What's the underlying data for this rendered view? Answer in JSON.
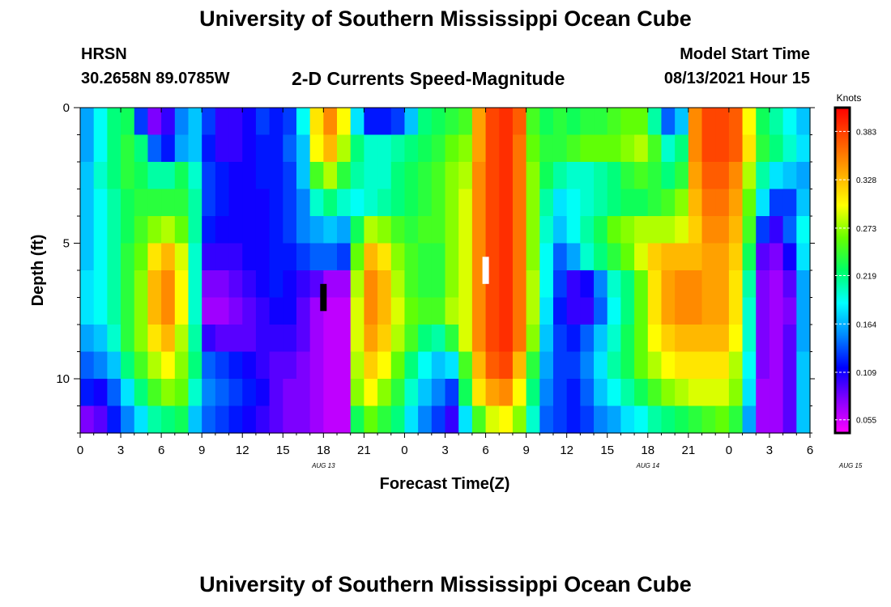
{
  "header": {
    "title": "University of Southern Mississippi Ocean Cube",
    "station": "HRSN",
    "coordinates": "30.2658N  89.0785W",
    "product": "2-D Currents Speed-Magnitude",
    "start_label": "Model Start Time",
    "start_value": "08/13/2021 Hour 15"
  },
  "footer": {
    "title": "University of Southern Mississippi Ocean Cube"
  },
  "chart_data": {
    "type": "heatmap",
    "xlabel": "Forecast Time(Z)",
    "ylabel": "Depth (ft)",
    "x_tick_labels": [
      "0",
      "3",
      "6",
      "9",
      "12",
      "15",
      "18",
      "21",
      "0",
      "3",
      "6",
      "9",
      "12",
      "15",
      "18",
      "21",
      "0",
      "3",
      "6"
    ],
    "date_labels": [
      {
        "text": "AUG 13",
        "tick": 6
      },
      {
        "text": "AUG 14",
        "tick": 14
      },
      {
        "text": "AUG 15",
        "tick": 19
      }
    ],
    "y_ticks": [
      0,
      5,
      10
    ],
    "y_range": [
      0,
      12
    ],
    "x_range_hours": [
      0,
      54
    ],
    "colorbar": {
      "title": "Knots",
      "range": [
        0.04,
        0.41
      ],
      "ticks": [
        0.383,
        0.328,
        0.273,
        0.219,
        0.164,
        0.109,
        0.055
      ]
    },
    "colorscale": [
      "#ff00ff",
      "#8800ff",
      "#0000ff",
      "#0088ff",
      "#00ffff",
      "#00ff66",
      "#66ff00",
      "#ffff00",
      "#ffaa00",
      "#ff5500",
      "#ff0000"
    ],
    "markers": [
      {
        "color": "#000000",
        "hour": 18,
        "depth_top": 6.5,
        "depth_bottom": 7.5
      },
      {
        "color": "#ffffff",
        "hour": 30,
        "depth_top": 5.5,
        "depth_bottom": 6.5
      }
    ],
    "column_hours": [
      0,
      1,
      2,
      3,
      4,
      5,
      6,
      7,
      8,
      9,
      10,
      11,
      12,
      13,
      14,
      15,
      16,
      17,
      18,
      19,
      20,
      21,
      22,
      23,
      24,
      25,
      26,
      27,
      28,
      29,
      30,
      31,
      32,
      33,
      34,
      35,
      36,
      37,
      38,
      39,
      40,
      41,
      42,
      43,
      44,
      45,
      46,
      47,
      48,
      49,
      50,
      51,
      52,
      53
    ],
    "row_depths": [
      0,
      1,
      2,
      3,
      4,
      5,
      6,
      7,
      8,
      9,
      10,
      11
    ],
    "values": [
      [
        0.16,
        0.19,
        0.22,
        0.23,
        0.13,
        0.08,
        0.1,
        0.15,
        0.17,
        0.13,
        0.1,
        0.1,
        0.11,
        0.13,
        0.12,
        0.13,
        0.19,
        0.31,
        0.35,
        0.3,
        0.18,
        0.12,
        0.12,
        0.13,
        0.17,
        0.22,
        0.23,
        0.24,
        0.25,
        0.34,
        0.38,
        0.39,
        0.37,
        0.25,
        0.23,
        0.24,
        0.23,
        0.24,
        0.24,
        0.25,
        0.26,
        0.26,
        0.21,
        0.14,
        0.17,
        0.35,
        0.38,
        0.38,
        0.37,
        0.3,
        0.23,
        0.21,
        0.19,
        0.17
      ],
      [
        0.16,
        0.19,
        0.22,
        0.24,
        0.22,
        0.14,
        0.12,
        0.16,
        0.17,
        0.12,
        0.1,
        0.1,
        0.11,
        0.12,
        0.12,
        0.14,
        0.17,
        0.3,
        0.33,
        0.28,
        0.22,
        0.2,
        0.2,
        0.21,
        0.22,
        0.23,
        0.24,
        0.26,
        0.27,
        0.34,
        0.38,
        0.39,
        0.36,
        0.26,
        0.24,
        0.24,
        0.25,
        0.26,
        0.26,
        0.26,
        0.27,
        0.28,
        0.25,
        0.2,
        0.22,
        0.35,
        0.38,
        0.38,
        0.37,
        0.31,
        0.24,
        0.22,
        0.2,
        0.18
      ],
      [
        0.17,
        0.2,
        0.22,
        0.24,
        0.23,
        0.21,
        0.21,
        0.23,
        0.2,
        0.13,
        0.12,
        0.11,
        0.11,
        0.12,
        0.12,
        0.13,
        0.17,
        0.25,
        0.28,
        0.24,
        0.21,
        0.2,
        0.2,
        0.22,
        0.23,
        0.24,
        0.25,
        0.27,
        0.28,
        0.35,
        0.38,
        0.39,
        0.36,
        0.27,
        0.23,
        0.21,
        0.2,
        0.2,
        0.21,
        0.22,
        0.24,
        0.25,
        0.24,
        0.22,
        0.24,
        0.34,
        0.37,
        0.37,
        0.35,
        0.28,
        0.21,
        0.18,
        0.17,
        0.16
      ],
      [
        0.17,
        0.19,
        0.21,
        0.23,
        0.24,
        0.24,
        0.24,
        0.24,
        0.21,
        0.13,
        0.12,
        0.11,
        0.11,
        0.11,
        0.12,
        0.13,
        0.15,
        0.2,
        0.22,
        0.2,
        0.19,
        0.2,
        0.21,
        0.22,
        0.23,
        0.24,
        0.25,
        0.27,
        0.29,
        0.35,
        0.38,
        0.39,
        0.36,
        0.27,
        0.21,
        0.18,
        0.19,
        0.2,
        0.21,
        0.22,
        0.23,
        0.23,
        0.24,
        0.25,
        0.27,
        0.33,
        0.36,
        0.36,
        0.34,
        0.26,
        0.18,
        0.13,
        0.13,
        0.17
      ],
      [
        0.17,
        0.19,
        0.21,
        0.23,
        0.25,
        0.27,
        0.28,
        0.26,
        0.21,
        0.12,
        0.11,
        0.11,
        0.11,
        0.11,
        0.12,
        0.13,
        0.15,
        0.16,
        0.17,
        0.16,
        0.23,
        0.28,
        0.27,
        0.25,
        0.24,
        0.25,
        0.25,
        0.27,
        0.29,
        0.35,
        0.38,
        0.39,
        0.36,
        0.27,
        0.2,
        0.17,
        0.19,
        0.21,
        0.23,
        0.26,
        0.27,
        0.28,
        0.28,
        0.28,
        0.29,
        0.32,
        0.35,
        0.35,
        0.33,
        0.25,
        0.13,
        0.1,
        0.14,
        0.19
      ],
      [
        0.17,
        0.19,
        0.21,
        0.24,
        0.26,
        0.31,
        0.33,
        0.29,
        0.2,
        0.1,
        0.1,
        0.1,
        0.11,
        0.11,
        0.12,
        0.12,
        0.13,
        0.14,
        0.14,
        0.13,
        0.26,
        0.33,
        0.31,
        0.27,
        0.25,
        0.24,
        0.24,
        0.27,
        0.29,
        0.35,
        0.38,
        0.39,
        0.36,
        0.27,
        0.19,
        0.14,
        0.16,
        0.2,
        0.22,
        0.24,
        0.26,
        0.29,
        0.32,
        0.33,
        0.33,
        0.33,
        0.34,
        0.34,
        0.32,
        0.23,
        0.09,
        0.08,
        0.11,
        0.18
      ],
      [
        0.18,
        0.19,
        0.21,
        0.24,
        0.27,
        0.33,
        0.35,
        0.3,
        0.2,
        0.08,
        0.08,
        0.09,
        0.1,
        0.11,
        0.12,
        0.11,
        0.1,
        0.09,
        0.07,
        0.07,
        0.28,
        0.35,
        0.33,
        0.28,
        0.25,
        0.24,
        0.24,
        0.27,
        0.29,
        0.35,
        0.38,
        0.39,
        0.36,
        0.28,
        0.19,
        0.13,
        0.1,
        0.11,
        0.15,
        0.2,
        0.22,
        0.26,
        0.31,
        0.34,
        0.35,
        0.35,
        0.34,
        0.34,
        0.31,
        0.21,
        0.08,
        0.07,
        0.09,
        0.16
      ],
      [
        0.18,
        0.19,
        0.21,
        0.24,
        0.27,
        0.33,
        0.35,
        0.3,
        0.2,
        0.07,
        0.07,
        0.08,
        0.09,
        0.1,
        0.11,
        0.11,
        0.09,
        0.07,
        0.06,
        0.06,
        0.29,
        0.35,
        0.33,
        0.29,
        0.26,
        0.25,
        0.25,
        0.28,
        0.29,
        0.35,
        0.38,
        0.39,
        0.36,
        0.28,
        0.18,
        0.12,
        0.1,
        0.1,
        0.14,
        0.19,
        0.22,
        0.26,
        0.31,
        0.34,
        0.35,
        0.35,
        0.34,
        0.34,
        0.31,
        0.2,
        0.08,
        0.07,
        0.08,
        0.16
      ],
      [
        0.16,
        0.17,
        0.2,
        0.24,
        0.27,
        0.31,
        0.33,
        0.28,
        0.21,
        0.1,
        0.09,
        0.09,
        0.09,
        0.1,
        0.1,
        0.1,
        0.09,
        0.07,
        0.06,
        0.06,
        0.29,
        0.34,
        0.32,
        0.28,
        0.25,
        0.22,
        0.21,
        0.24,
        0.29,
        0.35,
        0.38,
        0.39,
        0.36,
        0.27,
        0.17,
        0.13,
        0.12,
        0.14,
        0.17,
        0.2,
        0.23,
        0.26,
        0.3,
        0.32,
        0.33,
        0.33,
        0.33,
        0.33,
        0.3,
        0.2,
        0.08,
        0.07,
        0.09,
        0.16
      ],
      [
        0.14,
        0.15,
        0.17,
        0.22,
        0.25,
        0.28,
        0.3,
        0.27,
        0.22,
        0.14,
        0.13,
        0.12,
        0.11,
        0.1,
        0.09,
        0.09,
        0.08,
        0.07,
        0.06,
        0.06,
        0.28,
        0.32,
        0.3,
        0.26,
        0.22,
        0.19,
        0.17,
        0.18,
        0.25,
        0.33,
        0.37,
        0.38,
        0.33,
        0.24,
        0.16,
        0.13,
        0.13,
        0.15,
        0.18,
        0.21,
        0.23,
        0.26,
        0.28,
        0.3,
        0.31,
        0.31,
        0.31,
        0.31,
        0.28,
        0.19,
        0.08,
        0.07,
        0.09,
        0.17
      ],
      [
        0.12,
        0.11,
        0.14,
        0.18,
        0.22,
        0.25,
        0.27,
        0.26,
        0.2,
        0.15,
        0.14,
        0.13,
        0.12,
        0.11,
        0.09,
        0.08,
        0.08,
        0.07,
        0.06,
        0.06,
        0.27,
        0.3,
        0.27,
        0.24,
        0.2,
        0.17,
        0.15,
        0.13,
        0.23,
        0.31,
        0.34,
        0.35,
        0.3,
        0.22,
        0.15,
        0.13,
        0.12,
        0.14,
        0.17,
        0.19,
        0.21,
        0.23,
        0.25,
        0.27,
        0.28,
        0.29,
        0.29,
        0.29,
        0.27,
        0.18,
        0.07,
        0.07,
        0.09,
        0.17
      ],
      [
        0.08,
        0.09,
        0.12,
        0.15,
        0.18,
        0.21,
        0.22,
        0.23,
        0.17,
        0.14,
        0.13,
        0.12,
        0.11,
        0.1,
        0.09,
        0.08,
        0.08,
        0.07,
        0.06,
        0.06,
        0.23,
        0.26,
        0.24,
        0.22,
        0.18,
        0.15,
        0.13,
        0.1,
        0.18,
        0.25,
        0.29,
        0.3,
        0.27,
        0.2,
        0.14,
        0.13,
        0.12,
        0.13,
        0.15,
        0.16,
        0.18,
        0.19,
        0.21,
        0.22,
        0.23,
        0.24,
        0.25,
        0.26,
        0.24,
        0.16,
        0.07,
        0.07,
        0.09,
        0.17
      ]
    ]
  }
}
